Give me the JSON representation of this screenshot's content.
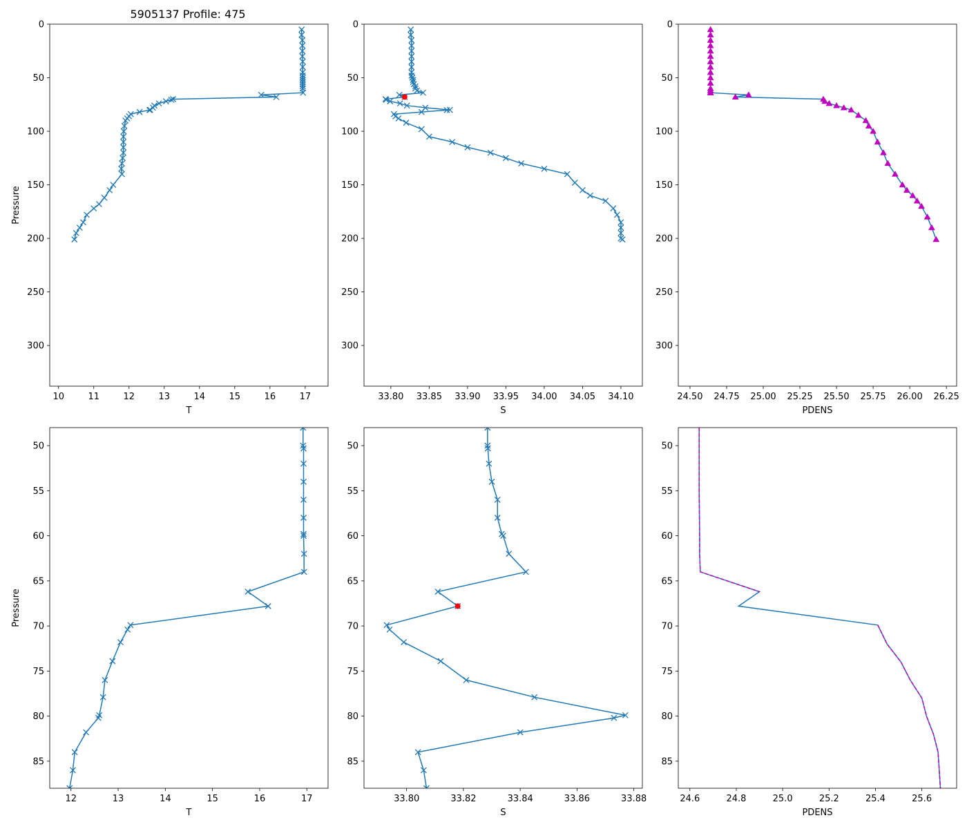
{
  "figure": {
    "title": "5905137 Profile: 475"
  },
  "colors": {
    "line": "#1f77b4",
    "flag": "#ff0000",
    "pdens": "#bf00bf"
  },
  "chart_data": [
    {
      "id": "top-T",
      "type": "line",
      "xlabel": "T",
      "ylabel": "Pressure",
      "title": "5905137 Profile: 475",
      "xlim": [
        9.75,
        17.65
      ],
      "ylim": [
        338,
        0
      ],
      "xticks": [
        10,
        11,
        12,
        13,
        14,
        15,
        16,
        17
      ],
      "yticks": [
        0,
        50,
        100,
        150,
        200,
        250,
        300
      ],
      "series": [
        {
          "name": "T",
          "marker": "x",
          "x": [
            16.9,
            16.9,
            16.92,
            16.92,
            16.92,
            16.92,
            16.93,
            16.93,
            16.93,
            16.93,
            16.93,
            16.93,
            16.93,
            16.93,
            16.93,
            16.93,
            16.94,
            15.75,
            16.18,
            13.25,
            13.2,
            13.05,
            12.85,
            12.72,
            12.68,
            12.6,
            12.58,
            12.3,
            12.05,
            12.0,
            11.95,
            11.9,
            11.87,
            11.85,
            11.84,
            11.84,
            11.84,
            11.84,
            11.82,
            11.8,
            11.78,
            11.8,
            11.55,
            11.45,
            11.3,
            11.15,
            11.0,
            10.8,
            10.7,
            10.6,
            10.5,
            10.45
          ],
          "y": [
            5,
            10,
            15,
            20,
            25,
            30,
            35,
            40,
            45,
            48,
            50,
            52,
            54,
            56,
            58,
            60,
            64,
            66,
            68,
            70,
            70.5,
            72,
            74,
            76,
            78,
            80,
            80.2,
            82,
            84,
            86,
            88,
            90,
            95,
            100,
            105,
            110,
            115,
            120,
            125,
            130,
            135,
            140,
            150,
            155,
            162,
            168,
            172,
            178,
            185,
            190,
            195,
            201
          ]
        }
      ]
    },
    {
      "id": "top-S",
      "type": "line",
      "xlabel": "S",
      "ylabel": "",
      "xlim": [
        33.765,
        34.128
      ],
      "ylim": [
        338,
        0
      ],
      "xticks": [
        33.8,
        33.85,
        33.9,
        33.95,
        34.0,
        34.05,
        34.1
      ],
      "yticks": [
        0,
        50,
        100,
        150,
        200,
        250,
        300
      ],
      "series": [
        {
          "name": "S",
          "marker": "x",
          "x": [
            33.826,
            33.826,
            33.827,
            33.827,
            33.827,
            33.827,
            33.827,
            33.827,
            33.827,
            33.827,
            33.828,
            33.829,
            33.829,
            33.83,
            33.832,
            33.832,
            33.834,
            33.842,
            33.811,
            33.818,
            33.793,
            33.794,
            33.799,
            33.812,
            33.821,
            33.845,
            33.877,
            33.873,
            33.84,
            33.804,
            33.806,
            33.81,
            33.82,
            33.84,
            33.85,
            33.88,
            33.9,
            33.93,
            33.95,
            33.97,
            34.0,
            34.03,
            34.04,
            34.05,
            34.06,
            34.08,
            34.09,
            34.095,
            34.1,
            34.1,
            34.1,
            34.1,
            34.102
          ],
          "y": [
            5,
            10,
            15,
            20,
            25,
            30,
            35,
            40,
            45,
            48,
            50,
            52,
            54,
            56,
            58,
            60,
            62,
            64,
            66,
            68,
            70,
            70.5,
            72,
            74,
            76,
            78,
            80,
            80.2,
            82,
            84,
            86,
            88,
            92,
            98,
            105,
            110,
            115,
            120,
            125,
            130,
            135,
            140,
            148,
            155,
            160,
            165,
            172,
            178,
            185,
            190,
            195,
            200,
            201
          ]
        }
      ],
      "flag": {
        "x": 33.818,
        "y": 68
      }
    },
    {
      "id": "top-PDENS",
      "type": "line",
      "xlabel": "PDENS",
      "ylabel": "",
      "xlim": [
        24.42,
        26.32
      ],
      "ylim": [
        338,
        0
      ],
      "xticks": [
        24.5,
        24.75,
        25.0,
        25.25,
        25.5,
        25.75,
        26.0,
        26.25
      ],
      "yticks": [
        0,
        50,
        100,
        150,
        200,
        250,
        300
      ],
      "series": [
        {
          "name": "PDENS",
          "marker": "triangle",
          "x": [
            24.64,
            24.64,
            24.64,
            24.64,
            24.64,
            24.64,
            24.64,
            24.64,
            24.64,
            24.64,
            24.64,
            24.64,
            24.64,
            24.64,
            24.64,
            24.9,
            24.81,
            25.41,
            25.42,
            25.45,
            25.5,
            25.55,
            25.6,
            25.65,
            25.7,
            25.72,
            25.75,
            25.78,
            25.82,
            25.85,
            25.9,
            25.95,
            25.98,
            26.02,
            26.05,
            26.08,
            26.12,
            26.15,
            26.18
          ],
          "y": [
            5,
            10,
            15,
            20,
            25,
            30,
            35,
            40,
            45,
            50,
            55,
            60,
            62,
            64,
            64,
            66,
            68,
            70,
            72,
            74,
            76,
            78,
            80,
            85,
            90,
            95,
            100,
            110,
            120,
            130,
            140,
            150,
            155,
            160,
            165,
            170,
            180,
            190,
            201
          ]
        }
      ]
    },
    {
      "id": "bottom-T",
      "type": "line",
      "xlabel": "T",
      "ylabel": "Pressure",
      "xlim": [
        11.55,
        17.45
      ],
      "ylim": [
        88,
        48
      ],
      "xticks": [
        12,
        13,
        14,
        15,
        16,
        17
      ],
      "yticks": [
        50,
        55,
        60,
        65,
        70,
        75,
        80,
        85
      ],
      "series": [
        {
          "name": "T",
          "marker": "x",
          "x": [
            16.92,
            16.92,
            16.93,
            16.93,
            16.93,
            16.93,
            16.93,
            16.93,
            16.93,
            16.94,
            16.94,
            15.75,
            16.18,
            13.26,
            13.2,
            13.05,
            12.88,
            12.72,
            12.68,
            12.6,
            12.58,
            12.32,
            12.08,
            12.04,
            11.97
          ],
          "y": [
            48,
            50,
            50.3,
            52,
            54,
            56,
            58,
            59.8,
            60,
            62,
            64,
            66.2,
            67.8,
            69.9,
            70.4,
            71.8,
            73.9,
            76,
            77.9,
            79.9,
            80.2,
            81.8,
            84,
            86,
            88
          ]
        }
      ]
    },
    {
      "id": "bottom-S",
      "type": "line",
      "xlabel": "S",
      "ylabel": "",
      "xlim": [
        33.785,
        33.883
      ],
      "ylim": [
        88,
        48
      ],
      "xticks": [
        33.8,
        33.82,
        33.84,
        33.86,
        33.88
      ],
      "yticks": [
        50,
        55,
        60,
        65,
        70,
        75,
        80,
        85
      ],
      "series": [
        {
          "name": "S",
          "marker": "x",
          "x": [
            33.8285,
            33.8285,
            33.8286,
            33.829,
            33.83,
            33.832,
            33.832,
            33.8335,
            33.834,
            33.836,
            33.842,
            33.811,
            33.818,
            33.793,
            33.794,
            33.799,
            33.812,
            33.821,
            33.845,
            33.877,
            33.873,
            33.84,
            33.804,
            33.806,
            33.807
          ],
          "y": [
            48,
            50,
            50.3,
            52,
            54,
            56,
            58,
            59.8,
            60,
            62,
            64,
            66.2,
            67.8,
            69.9,
            70.4,
            71.8,
            73.9,
            76,
            77.9,
            79.9,
            80.2,
            81.8,
            84,
            86,
            88
          ]
        }
      ],
      "flag": {
        "x": 33.818,
        "y": 67.8
      }
    },
    {
      "id": "bottom-PDENS",
      "type": "line",
      "xlabel": "PDENS",
      "ylabel": "",
      "xlim": [
        24.55,
        25.75
      ],
      "ylim": [
        88,
        48
      ],
      "xticks": [
        24.6,
        24.8,
        25.0,
        25.2,
        25.4,
        25.6
      ],
      "yticks": [
        50,
        55,
        60,
        65,
        70,
        75,
        80,
        85
      ],
      "series": [
        {
          "name": "PDENS",
          "marker": "none",
          "x": [
            24.64,
            24.64,
            24.642,
            24.642,
            24.645,
            24.9,
            24.81,
            25.41,
            25.45,
            25.51,
            25.55,
            25.6,
            25.62,
            25.65,
            25.67,
            25.68
          ],
          "y": [
            48,
            55,
            60,
            62,
            64,
            66.2,
            67.8,
            69.9,
            72,
            74,
            76,
            78,
            80,
            82,
            84,
            88
          ]
        },
        {
          "name": "PDENS-dashed",
          "marker": "none",
          "dashed": true,
          "x": [
            24.64,
            24.64,
            24.642,
            24.642,
            24.645,
            24.9
          ],
          "y": [
            48,
            55,
            60,
            62,
            64,
            66.2
          ]
        },
        {
          "name": "PDENS-dashed-lower",
          "marker": "none",
          "dashed": true,
          "x": [
            25.41,
            25.45,
            25.51,
            25.55,
            25.6,
            25.62,
            25.65,
            25.67,
            25.68
          ],
          "y": [
            69.9,
            72,
            74,
            76,
            78,
            80,
            82,
            84,
            88
          ]
        }
      ]
    }
  ]
}
